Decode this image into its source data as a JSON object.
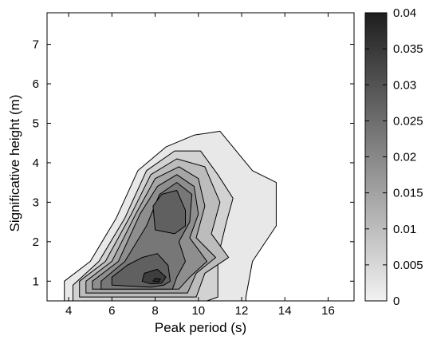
{
  "chart_data": {
    "type": "contour",
    "title": "",
    "xlabel": "Peak period (s)",
    "ylabel": "Significative height (m)",
    "xlim": [
      3,
      17.2
    ],
    "ylim": [
      0.5,
      7.8
    ],
    "xticks": [
      4,
      6,
      8,
      10,
      12,
      14,
      16
    ],
    "yticks": [
      1,
      2,
      3,
      4,
      5,
      6,
      7
    ],
    "grid": false,
    "colorbar": {
      "label": "",
      "range": [
        0,
        0.04
      ],
      "ticks": [
        "0",
        "0.005",
        "0.01",
        "0.015",
        "0.02",
        "0.025",
        "0.03",
        "0.035",
        "0.04"
      ],
      "colormap": "gray-reversed",
      "color_low": "#f2f2f2",
      "color_high": "#1e1e1e"
    },
    "contour_levels": [
      0.005,
      0.01,
      0.015,
      0.02,
      0.025,
      0.03,
      0.035
    ],
    "regions": [
      {
        "level": 0.0,
        "fill": "#e8e8e8",
        "points": [
          [
            3.8,
            0.5
          ],
          [
            3.8,
            1.0
          ],
          [
            5.0,
            1.5
          ],
          [
            6.2,
            2.6
          ],
          [
            7.2,
            3.8
          ],
          [
            8.5,
            4.4
          ],
          [
            9.8,
            4.7
          ],
          [
            11.0,
            4.8
          ],
          [
            12.5,
            3.8
          ],
          [
            13.6,
            3.5
          ],
          [
            13.6,
            2.4
          ],
          [
            12.5,
            1.5
          ],
          [
            12.2,
            0.6
          ],
          [
            12.2,
            0.5
          ]
        ]
      },
      {
        "level": 0.005,
        "fill": "#d2d2d2",
        "points": [
          [
            4.2,
            0.5
          ],
          [
            4.2,
            0.9
          ],
          [
            5.4,
            1.5
          ],
          [
            6.6,
            2.6
          ],
          [
            7.6,
            3.8
          ],
          [
            8.9,
            4.3
          ],
          [
            10.1,
            4.3
          ],
          [
            10.9,
            3.7
          ],
          [
            11.6,
            3.1
          ],
          [
            11.3,
            2.5
          ],
          [
            10.9,
            1.6
          ],
          [
            10.9,
            0.6
          ],
          [
            10.4,
            0.5
          ]
        ]
      },
      {
        "level": 0.01,
        "fill": "#bcbcbc",
        "points": [
          [
            4.5,
            0.6
          ],
          [
            4.5,
            1.0
          ],
          [
            5.7,
            1.5
          ],
          [
            6.9,
            2.7
          ],
          [
            7.8,
            3.7
          ],
          [
            9.0,
            4.1
          ],
          [
            10.3,
            3.9
          ],
          [
            11.0,
            3.0
          ],
          [
            10.6,
            2.2
          ],
          [
            11.4,
            1.6
          ],
          [
            10.3,
            1.2
          ],
          [
            9.9,
            0.6
          ],
          [
            9.2,
            0.6
          ]
        ]
      },
      {
        "level": 0.015,
        "fill": "#a6a6a6",
        "points": [
          [
            4.8,
            0.7
          ],
          [
            4.8,
            1.0
          ],
          [
            6.0,
            1.5
          ],
          [
            7.1,
            2.7
          ],
          [
            8.0,
            3.6
          ],
          [
            9.1,
            3.9
          ],
          [
            10.0,
            3.6
          ],
          [
            10.3,
            2.9
          ],
          [
            9.9,
            2.1
          ],
          [
            10.8,
            1.6
          ],
          [
            9.9,
            1.2
          ],
          [
            9.5,
            0.7
          ],
          [
            8.8,
            0.7
          ]
        ]
      },
      {
        "level": 0.02,
        "fill": "#8e8e8e",
        "points": [
          [
            5.1,
            0.8
          ],
          [
            5.1,
            1.0
          ],
          [
            6.3,
            1.5
          ],
          [
            7.3,
            2.7
          ],
          [
            8.1,
            3.4
          ],
          [
            9.0,
            3.7
          ],
          [
            9.8,
            3.4
          ],
          [
            10.0,
            2.7
          ],
          [
            9.6,
            2.1
          ],
          [
            10.4,
            1.5
          ],
          [
            9.6,
            1.1
          ],
          [
            9.1,
            0.8
          ],
          [
            8.6,
            0.8
          ]
        ]
      },
      {
        "level": 0.025,
        "fill": "#777777",
        "points": [
          [
            5.5,
            0.8
          ],
          [
            5.5,
            1.0
          ],
          [
            6.6,
            1.5
          ],
          [
            7.6,
            2.4
          ],
          [
            8.2,
            3.2
          ],
          [
            9.0,
            3.5
          ],
          [
            9.7,
            3.2
          ],
          [
            9.6,
            2.5
          ],
          [
            9.1,
            2.0
          ],
          [
            9.4,
            1.5
          ],
          [
            9.0,
            1.1
          ],
          [
            8.8,
            0.8
          ],
          [
            8.4,
            0.8
          ]
        ]
      },
      {
        "level": 0.03,
        "fill": "#606060",
        "points": [
          [
            8.0,
            2.3
          ],
          [
            7.9,
            2.9
          ],
          [
            8.3,
            3.2
          ],
          [
            9.0,
            3.3
          ],
          [
            9.4,
            2.8
          ],
          [
            9.4,
            2.4
          ],
          [
            8.9,
            2.2
          ]
        ]
      },
      {
        "level": 0.03,
        "fill": "#606060",
        "points": [
          [
            6.0,
            0.9
          ],
          [
            6.0,
            1.1
          ],
          [
            6.7,
            1.4
          ],
          [
            7.4,
            1.6
          ],
          [
            8.1,
            1.7
          ],
          [
            8.6,
            1.4
          ],
          [
            8.7,
            1.0
          ],
          [
            8.4,
            0.9
          ],
          [
            7.8,
            0.85
          ]
        ]
      },
      {
        "level": 0.035,
        "fill": "#3e3e3e",
        "points": [
          [
            7.4,
            1.0
          ],
          [
            7.5,
            1.2
          ],
          [
            8.1,
            1.3
          ],
          [
            8.5,
            1.1
          ],
          [
            8.3,
            0.95
          ],
          [
            7.8,
            0.93
          ]
        ]
      },
      {
        "level": 0.035,
        "fill": "#2a2a2a",
        "points": [
          [
            7.9,
            1.0
          ],
          [
            8.0,
            1.07
          ],
          [
            8.25,
            1.05
          ],
          [
            8.15,
            0.98
          ]
        ]
      }
    ]
  }
}
